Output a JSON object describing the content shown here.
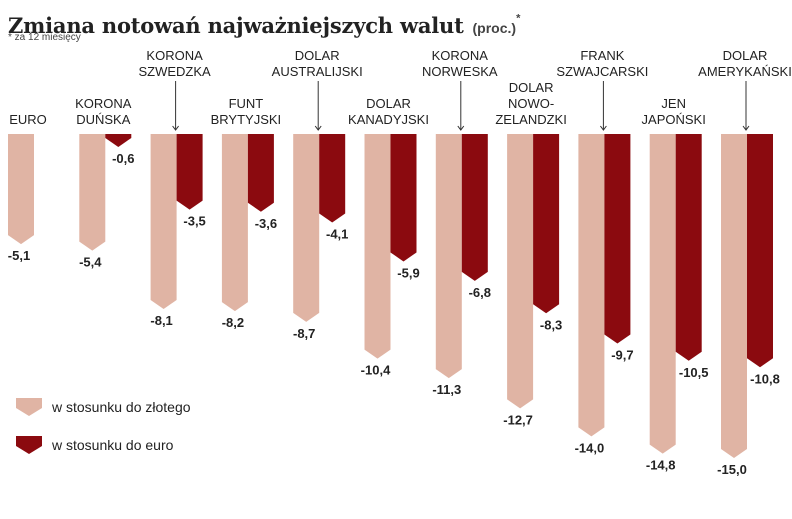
{
  "title": {
    "main": "Zmiana notowań najważniejszych walut",
    "unit": "(proc.)",
    "star": "*"
  },
  "footnote": "* za 12 miesięcy",
  "colors": {
    "pln": "#e0b4a4",
    "eur": "#8b0a0f"
  },
  "chart_data": {
    "type": "bar",
    "categories": [
      "EURO",
      "KORONA DUŃSKA",
      "KORONA SZWEDZKA",
      "FUNT BRYTYJSKI",
      "DOLAR AUSTRALIJSKI",
      "DOLAR KANADYJSKI",
      "KORONA NORWESKA",
      "DOLAR NOWO- ZELANDZKI",
      "FRANK SZWAJCARSKI",
      "JEN JAPOŃSKI",
      "DOLAR AMERYKAŃSKI"
    ],
    "category_lines": [
      [
        "EURO"
      ],
      [
        "KORONA",
        "DUŃSKA"
      ],
      [
        "KORONA",
        "SZWEDZKA"
      ],
      [
        "FUNT",
        "BRYTYJSKI"
      ],
      [
        "DOLAR",
        "AUSTRALIJSKI"
      ],
      [
        "DOLAR",
        "KANADYJSKI"
      ],
      [
        "KORONA",
        "NORWESKA"
      ],
      [
        "DOLAR",
        "NOWO-",
        "ZELANDZKI"
      ],
      [
        "FRANK",
        "SZWAJCARSKI"
      ],
      [
        "JEN",
        "JAPOŃSKI"
      ],
      [
        "DOLAR",
        "AMERYKAŃSKI"
      ]
    ],
    "series": [
      {
        "name": "w stosunku do złotego",
        "values": [
          -5.1,
          -5.4,
          -8.1,
          -8.2,
          -8.7,
          -10.4,
          -11.3,
          -12.7,
          -14.0,
          -14.8,
          -15.0
        ]
      },
      {
        "name": "w stosunku do euro",
        "values": [
          null,
          -0.6,
          -3.5,
          -3.6,
          -4.1,
          -5.9,
          -6.8,
          -8.3,
          -9.7,
          -10.5,
          -10.8
        ]
      }
    ],
    "value_labels": [
      [
        "-5,1",
        "-5,4",
        "-8,1",
        "-8,2",
        "-8,7",
        "-10,4",
        "-11,3",
        "-12,7",
        "-14,0",
        "-14,8",
        "-15,0"
      ],
      [
        "",
        "-0,6",
        "-3,5",
        "-3,6",
        "-4,1",
        "-5,9",
        "-6,8",
        "-8,3",
        "-9,7",
        "-10,5",
        "-10,8"
      ]
    ],
    "ylim": [
      -15,
      0
    ],
    "legend": "bottom-left",
    "grid": false
  }
}
